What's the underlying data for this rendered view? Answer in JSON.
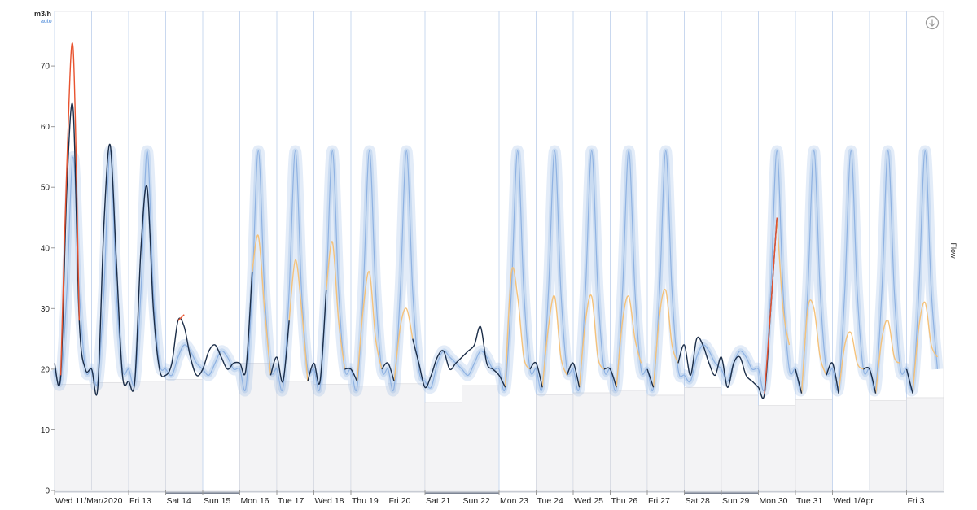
{
  "chart_data": {
    "type": "line",
    "y_unit": "m3/h",
    "y_unit_note": "auto",
    "y_label": "Flow",
    "xlim": [
      0,
      576
    ],
    "xticks": [
      {
        "value": 0,
        "label": "Wed 11/Mar/2020"
      },
      {
        "value": 48,
        "label": "Fri 13"
      },
      {
        "value": 72,
        "label": "Sat 14"
      },
      {
        "value": 96,
        "label": "Sun 15"
      },
      {
        "value": 120,
        "label": "Mon 16"
      },
      {
        "value": 144,
        "label": "Tue 17"
      },
      {
        "value": 168,
        "label": "Wed 18"
      },
      {
        "value": 192,
        "label": "Thu 19"
      },
      {
        "value": 216,
        "label": "Fri 20"
      },
      {
        "value": 240,
        "label": "Sat 21"
      },
      {
        "value": 264,
        "label": "Sun 22"
      },
      {
        "value": 288,
        "label": "Mon 23"
      },
      {
        "value": 312,
        "label": "Tue 24"
      },
      {
        "value": 336,
        "label": "Wed 25"
      },
      {
        "value": 360,
        "label": "Thu 26"
      },
      {
        "value": 384,
        "label": "Fri 27"
      },
      {
        "value": 408,
        "label": "Sat 28"
      },
      {
        "value": 432,
        "label": "Sun 29"
      },
      {
        "value": 456,
        "label": "Mon 30"
      },
      {
        "value": 480,
        "label": "Tue 31"
      },
      {
        "value": 504,
        "label": "Wed 1/Apr"
      },
      {
        "value": 552,
        "label": "Fri 3"
      }
    ],
    "ylim": [
      0,
      79
    ],
    "yticks": [
      0,
      10,
      20,
      30,
      40,
      50,
      60,
      70
    ],
    "grid": false,
    "day_floor": {
      "color": "#f3f3f5",
      "values": [
        17.5,
        17.8,
        18,
        18.3,
        null,
        21,
        18,
        17.5,
        17.2,
        17.6,
        14.5,
        17.3,
        null,
        15.8,
        16.1,
        16.5,
        15.7,
        17,
        15.7,
        14,
        15,
        null,
        14.8,
        15.3
      ]
    },
    "x": [
      0,
      4,
      8,
      12,
      16,
      20,
      24,
      28,
      32,
      36,
      40,
      44,
      48,
      52,
      56,
      60,
      64,
      68,
      72,
      76,
      80,
      84,
      88,
      92,
      96,
      100,
      104,
      108,
      112,
      116,
      120,
      124,
      128,
      132,
      136,
      140,
      144,
      148,
      152,
      156,
      160,
      164,
      168,
      172,
      176,
      180,
      184,
      188,
      192,
      196,
      200,
      204,
      208,
      212,
      216,
      220,
      224,
      228,
      232,
      236,
      240,
      244,
      248,
      252,
      256,
      260,
      264,
      268,
      272,
      276,
      280,
      284,
      288,
      292,
      296,
      300,
      304,
      308,
      312,
      316,
      320,
      324,
      328,
      332,
      336,
      340,
      344,
      348,
      352,
      356,
      360,
      364,
      368,
      372,
      376,
      380,
      384,
      388,
      392,
      396,
      400,
      404,
      408,
      412,
      416,
      420,
      424,
      428,
      432,
      436,
      440,
      444,
      448,
      452,
      456,
      460,
      464,
      468,
      472,
      476,
      480,
      484,
      488,
      492,
      496,
      500,
      504,
      508,
      512,
      516,
      520,
      524,
      528,
      532,
      536,
      540,
      544,
      548,
      552,
      556,
      560,
      564,
      568,
      572
    ],
    "series": [
      {
        "color": "#8fb2e2",
        "band": true,
        "values": [
          20,
          18,
          33,
          55,
          33,
          20,
          20,
          18,
          33,
          56,
          33,
          20,
          20,
          18,
          33,
          56,
          33,
          21,
          20,
          19,
          22,
          24,
          23,
          21,
          20,
          19,
          21,
          23,
          22,
          20,
          20,
          17,
          33,
          56,
          33,
          20,
          20,
          17,
          33,
          56,
          33,
          20,
          20,
          17,
          33,
          56,
          33,
          20,
          20,
          17,
          33,
          56,
          33,
          20,
          20,
          17,
          33,
          56,
          33,
          20,
          18,
          17,
          21,
          23,
          22,
          21,
          20,
          19,
          21,
          23,
          22,
          20,
          20,
          17,
          33,
          56,
          33,
          20,
          20,
          17,
          33,
          56,
          33,
          20,
          20,
          17,
          33,
          56,
          33,
          20,
          20,
          17,
          33,
          56,
          33,
          20,
          20,
          17,
          33,
          56,
          33,
          20,
          19,
          18,
          22,
          24,
          23,
          21,
          20,
          18,
          21,
          23,
          22,
          20,
          20,
          17,
          33,
          56,
          33,
          20,
          20,
          17,
          33,
          56,
          33,
          20,
          20,
          17,
          33,
          56,
          33,
          20,
          20,
          17,
          33,
          56,
          33,
          20,
          20,
          17,
          33,
          56,
          33,
          20
        ]
      },
      {
        "color": "#f5c27a",
        "values": [
          null,
          null,
          null,
          null,
          null,
          null,
          null,
          null,
          null,
          null,
          null,
          null,
          null,
          null,
          null,
          null,
          null,
          null,
          null,
          null,
          null,
          null,
          null,
          null,
          null,
          null,
          null,
          null,
          null,
          null,
          null,
          null,
          36,
          42,
          30,
          19,
          null,
          null,
          28,
          38,
          30,
          18,
          null,
          null,
          33,
          41,
          28,
          20,
          null,
          18,
          30,
          36,
          25,
          20,
          null,
          18,
          27,
          30,
          25,
          null,
          null,
          null,
          null,
          null,
          null,
          null,
          null,
          null,
          null,
          null,
          null,
          null,
          null,
          17,
          36,
          32,
          22,
          20,
          null,
          17,
          27,
          32,
          22,
          19,
          null,
          17,
          28,
          32,
          22,
          20,
          null,
          17,
          28,
          32,
          25,
          21,
          null,
          17,
          29,
          33,
          24,
          21,
          null,
          null,
          null,
          null,
          null,
          null,
          null,
          null,
          null,
          null,
          null,
          null,
          null,
          null,
          null,
          45,
          30,
          24,
          null,
          16,
          30,
          30,
          22,
          19,
          null,
          16,
          24,
          26,
          21,
          20,
          null,
          16,
          25,
          28,
          22,
          21,
          null,
          16,
          27,
          31,
          24,
          22
        ]
      },
      {
        "color": "#1b2d48",
        "values": [
          21,
          19,
          50,
          63,
          28,
          20,
          20,
          17,
          44,
          57,
          38,
          19,
          18,
          18,
          40,
          50,
          30,
          20,
          19,
          21,
          28,
          27,
          22,
          19,
          20,
          23,
          24,
          22,
          20,
          21,
          21,
          20,
          36,
          null,
          null,
          19,
          22,
          18,
          28,
          null,
          null,
          18,
          21,
          18,
          33,
          null,
          null,
          20,
          20,
          18,
          null,
          null,
          null,
          20,
          21,
          18,
          null,
          null,
          25,
          21,
          17,
          19,
          22,
          23,
          20,
          21,
          22,
          23,
          24,
          27,
          21,
          20,
          19,
          17,
          null,
          null,
          null,
          20,
          21,
          17,
          null,
          null,
          null,
          19,
          21,
          17,
          null,
          null,
          null,
          20,
          20,
          17,
          null,
          null,
          null,
          null,
          20,
          17,
          null,
          null,
          null,
          21,
          24,
          19,
          25,
          24,
          21,
          19,
          22,
          17,
          21,
          22,
          19,
          18,
          17,
          16,
          30,
          45,
          null,
          null,
          20,
          16,
          null,
          null,
          null,
          19,
          21,
          16,
          null,
          null,
          null,
          20,
          20,
          16,
          null,
          null,
          null,
          null,
          20,
          16,
          null,
          null,
          null,
          22
        ]
      },
      {
        "color": "#e8532f",
        "values": [
          null,
          19,
          54,
          73,
          28,
          null,
          null,
          null,
          null,
          null,
          null,
          null,
          null,
          null,
          null,
          null,
          null,
          null,
          null,
          null,
          28,
          29,
          null,
          null,
          null,
          null,
          null,
          null,
          null,
          null,
          null,
          null,
          null,
          null,
          null,
          null,
          null,
          null,
          null,
          null,
          null,
          null,
          null,
          null,
          null,
          null,
          null,
          null,
          null,
          null,
          null,
          null,
          null,
          null,
          null,
          null,
          null,
          null,
          null,
          null,
          null,
          null,
          null,
          null,
          null,
          null,
          null,
          null,
          null,
          null,
          null,
          null,
          null,
          null,
          null,
          null,
          null,
          null,
          null,
          null,
          null,
          null,
          null,
          null,
          null,
          null,
          null,
          null,
          null,
          null,
          null,
          null,
          null,
          null,
          null,
          null,
          null,
          null,
          null,
          null,
          null,
          null,
          null,
          null,
          null,
          null,
          null,
          null,
          null,
          null,
          null,
          null,
          null,
          null,
          null,
          16,
          30,
          45,
          null,
          null,
          null,
          null,
          null,
          null,
          null,
          null,
          null,
          null,
          null,
          null,
          null,
          null,
          null,
          null,
          null,
          null,
          null,
          null,
          null,
          null,
          null,
          null,
          null,
          null
        ]
      }
    ]
  }
}
